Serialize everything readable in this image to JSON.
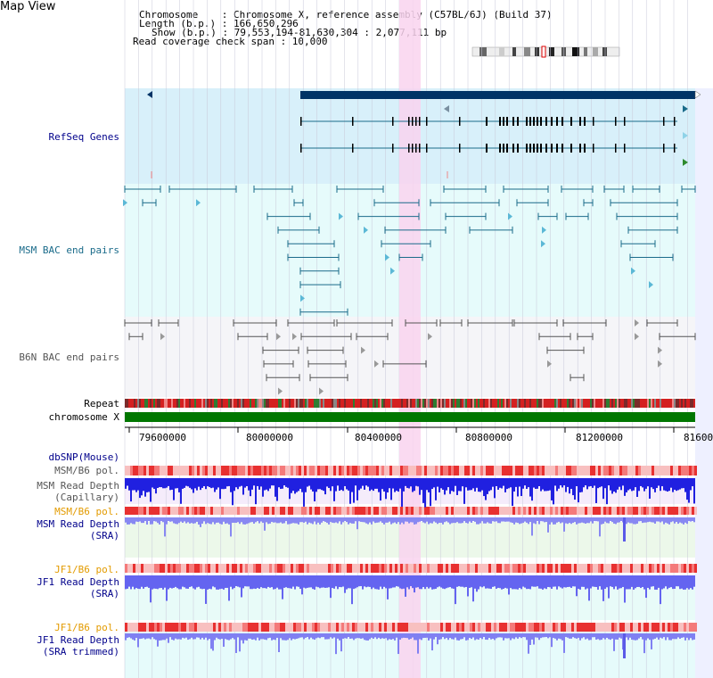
{
  "page": {
    "title": "Map View"
  },
  "info": {
    "chromosome": "Chromosome    : Chromosome X, reference assembly (C57BL/6J) (Build 37)",
    "length": "Length (b.p.) : 166,650,296",
    "show": "Show (b.p.) : 79,553,194-81,630,304 : 2,077,111 bp",
    "read_coverage": "Read coverage check span : 10,000"
  },
  "tracks": {
    "refseq": "RefSeq Genes",
    "msm_bac": "MSM BAC end pairs",
    "b6n_bac": "B6N BAC end pairs",
    "repeat": "Repeat",
    "chromosome": "chromosome X",
    "dbsnp": "dbSNP(Mouse)",
    "msm_b6_pol_1": "MSM/B6 pol.",
    "msm_read_depth_cap_1": "MSM Read Depth",
    "msm_read_depth_cap_2": "(Capillary)",
    "msm_b6_pol_2": "MSM/B6 pol.",
    "msm_read_depth_sra_1": "MSM Read Depth",
    "msm_read_depth_sra_2": "(SRA)",
    "jf1_b6_pol_1": "JF1/B6 pol.",
    "jf1_read_depth_1": "JF1 Read Depth",
    "jf1_read_depth_2": "(SRA)",
    "jf1_b6_pol_2": "JF1/B6 pol.",
    "jf1_read_depth_trim_1": "JF1 Read Depth",
    "jf1_read_depth_trim_2": "(SRA trimmed)"
  },
  "axis": {
    "ticks": [
      "79600000",
      "80000000",
      "80400000",
      "80800000",
      "81200000",
      "81600"
    ]
  },
  "colors": {
    "highlight": "#f9d3ef",
    "refseq_bg": "#d8f0fa",
    "bac_bg": "#e6fbfb",
    "b6n_bg": "#f5f5f8",
    "gene": "#003366",
    "bac": "#1a6b8a",
    "chrom_green": "#007700",
    "depth_blue": "#3434e8",
    "depth_light": "#8c8cf2"
  }
}
